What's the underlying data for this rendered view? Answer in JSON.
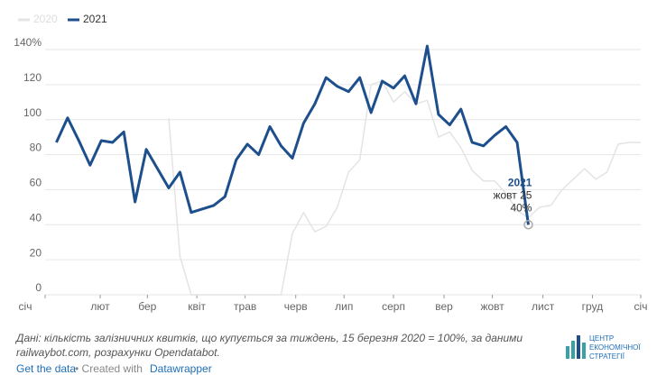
{
  "chart_data": {
    "type": "line",
    "x": [
      1,
      2,
      3,
      4,
      5,
      6,
      7,
      8,
      9,
      10,
      11,
      12,
      13,
      14,
      15,
      16,
      17,
      18,
      19,
      20,
      21,
      22,
      23,
      24,
      25,
      26,
      27,
      28,
      29,
      30,
      31,
      32,
      33,
      34,
      35,
      36,
      37,
      38,
      39,
      40,
      41,
      42,
      43,
      44,
      45,
      46,
      47,
      48,
      49,
      50,
      51,
      52,
      53
    ],
    "series": [
      {
        "name": "2020",
        "color": "#e4e4e4",
        "values": [
          null,
          null,
          null,
          null,
          null,
          null,
          null,
          null,
          null,
          null,
          101,
          22,
          0,
          0,
          0,
          0,
          0,
          0,
          0,
          0,
          0,
          35,
          47,
          36,
          39,
          50,
          70,
          77,
          120,
          122,
          110,
          116,
          109,
          111,
          90,
          93,
          84,
          71,
          65,
          65,
          58,
          48,
          44,
          50,
          51,
          60,
          66,
          72,
          66,
          70,
          86,
          87,
          87
        ]
      },
      {
        "name": "2021",
        "color": "#1d4f8c",
        "values": [
          87,
          101,
          88,
          74,
          88,
          87,
          93,
          53,
          83,
          72,
          61,
          70,
          47,
          49,
          51,
          56,
          77,
          86,
          80,
          96,
          85,
          78,
          98,
          109,
          124,
          119,
          116,
          124,
          104,
          122,
          118,
          125,
          109,
          142,
          103,
          97,
          106,
          87,
          85,
          91,
          96,
          87,
          40,
          null,
          null,
          null,
          null,
          null,
          null,
          null,
          null,
          null,
          null
        ]
      }
    ],
    "xlim": [
      0,
      53
    ],
    "xticks": [
      {
        "value": 0,
        "label": "січ"
      },
      {
        "value": 4.9,
        "label": "лют"
      },
      {
        "value": 9.1,
        "label": "бер"
      },
      {
        "value": 13.5,
        "label": "квіт"
      },
      {
        "value": 17.8,
        "label": "трав"
      },
      {
        "value": 22.3,
        "label": "черв"
      },
      {
        "value": 26.6,
        "label": "лип"
      },
      {
        "value": 31,
        "label": "серп"
      },
      {
        "value": 35.5,
        "label": "вер"
      },
      {
        "value": 39.8,
        "label": "жовт"
      },
      {
        "value": 44.3,
        "label": "лист"
      },
      {
        "value": 48.7,
        "label": "груд"
      },
      {
        "value": 53,
        "label": "січ"
      }
    ],
    "ylim": [
      0,
      145
    ],
    "yticks": [
      0,
      20,
      40,
      60,
      80,
      100,
      120,
      {
        "value": 140,
        "label": "140%"
      }
    ],
    "grid": true,
    "highlight": {
      "date": "жовт 25",
      "value_label": "40%"
    },
    "notes": [
      "Дані: кількість залізничних квитків, що купується за тиждень, 15 березня 2020 = 100%, за даними",
      "railwaybot.com, розрахунки Opendatabot."
    ],
    "footer": {
      "link": "Get the data",
      "created": "• Created with",
      "tool": "Datawrapper"
    },
    "logo": [
      "ЦЕНТР",
      "ЕКОНОМІЧНОЇ",
      "СТРАТЕГІЇ"
    ]
  }
}
